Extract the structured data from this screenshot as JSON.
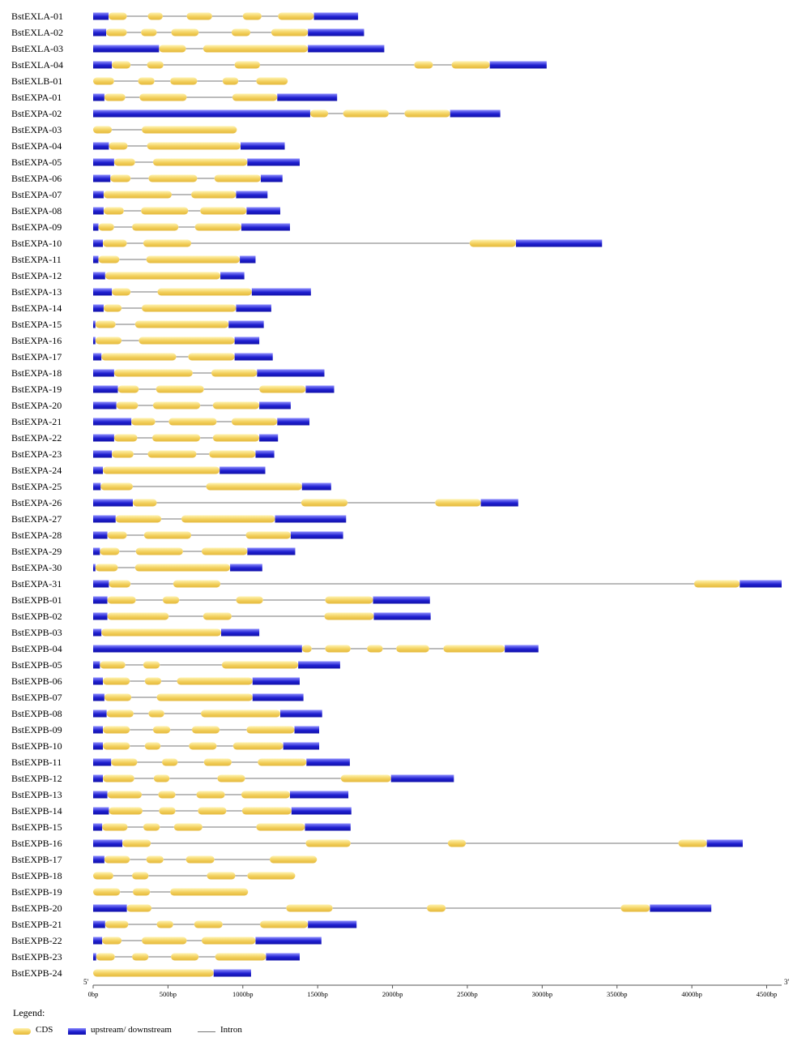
{
  "chart_data": {
    "type": "gene-structure",
    "x_unit": "bp",
    "x_range": [
      0,
      4600
    ],
    "ticks": [
      {
        "value": 0,
        "label": "0bp"
      },
      {
        "value": 500,
        "label": "500bp"
      },
      {
        "value": 1000,
        "label": "1000bp"
      },
      {
        "value": 1500,
        "label": "1500bp"
      },
      {
        "value": 2000,
        "label": "2000bp"
      },
      {
        "value": 2500,
        "label": "2500bp"
      },
      {
        "value": 3000,
        "label": "3000bp"
      },
      {
        "value": 3500,
        "label": "3500bp"
      },
      {
        "value": 4000,
        "label": "4000bp"
      },
      {
        "value": 4500,
        "label": "4500bp"
      }
    ],
    "five_prime_label": "5'",
    "three_prime_label": "3'",
    "genes": [
      {
        "name": "BstEXLA-01",
        "length": 1770,
        "cds": [
          [
            103,
            225
          ],
          [
            365,
            465
          ],
          [
            625,
            795
          ],
          [
            1000,
            1125
          ],
          [
            1235,
            1475
          ]
        ]
      },
      {
        "name": "BstEXLA-02",
        "length": 1810,
        "cds": [
          [
            87,
            225
          ],
          [
            320,
            425
          ],
          [
            522,
            705
          ],
          [
            925,
            1050
          ],
          [
            1190,
            1435
          ]
        ]
      },
      {
        "name": "BstEXLA-03",
        "length": 1945,
        "cds": [
          [
            440,
            620
          ],
          [
            735,
            1435
          ]
        ]
      },
      {
        "name": "BstEXLA-04",
        "length": 3030,
        "cds": [
          [
            125,
            250
          ],
          [
            360,
            470
          ],
          [
            945,
            1115
          ],
          [
            2145,
            2270
          ],
          [
            2395,
            2650
          ]
        ]
      },
      {
        "name": "BstEXLB-01",
        "length": 1300,
        "cds": [
          [
            0,
            140
          ],
          [
            300,
            410
          ],
          [
            515,
            695
          ],
          [
            865,
            970
          ],
          [
            1090,
            1300
          ]
        ]
      },
      {
        "name": "BstEXPA-01",
        "length": 1630,
        "cds": [
          [
            75,
            215
          ],
          [
            310,
            625
          ],
          [
            930,
            1230
          ]
        ]
      },
      {
        "name": "BstEXPA-02",
        "length": 2720,
        "cds": [
          [
            1450,
            1570
          ],
          [
            1670,
            1975
          ],
          [
            2080,
            2385
          ]
        ]
      },
      {
        "name": "BstEXPA-03",
        "length": 960,
        "cds": [
          [
            0,
            125
          ],
          [
            325,
            960
          ]
        ]
      },
      {
        "name": "BstEXPA-04",
        "length": 1280,
        "cds": [
          [
            105,
            230
          ],
          [
            360,
            985
          ]
        ]
      },
      {
        "name": "BstEXPA-05",
        "length": 1380,
        "cds": [
          [
            140,
            280
          ],
          [
            400,
            1030
          ]
        ]
      },
      {
        "name": "BstEXPA-06",
        "length": 1265,
        "cds": [
          [
            115,
            250
          ],
          [
            370,
            695
          ],
          [
            810,
            1120
          ]
        ]
      },
      {
        "name": "BstEXPA-07",
        "length": 1165,
        "cds": [
          [
            70,
            525
          ],
          [
            655,
            955
          ]
        ]
      },
      {
        "name": "BstEXPA-08",
        "length": 1250,
        "cds": [
          [
            70,
            205
          ],
          [
            320,
            635
          ],
          [
            715,
            1025
          ]
        ]
      },
      {
        "name": "BstEXPA-09",
        "length": 1315,
        "cds": [
          [
            35,
            140
          ],
          [
            260,
            570
          ],
          [
            680,
            990
          ]
        ]
      },
      {
        "name": "BstEXPA-10",
        "length": 3400,
        "cds": [
          [
            65,
            225
          ],
          [
            335,
            655
          ],
          [
            2515,
            2825
          ]
        ]
      },
      {
        "name": "BstEXPA-11",
        "length": 1085,
        "cds": [
          [
            35,
            175
          ],
          [
            355,
            980
          ]
        ]
      },
      {
        "name": "BstEXPA-12",
        "length": 1010,
        "cds": [
          [
            80,
            850
          ]
        ]
      },
      {
        "name": "BstEXPA-13",
        "length": 1455,
        "cds": [
          [
            125,
            250
          ],
          [
            430,
            1060
          ]
        ]
      },
      {
        "name": "BstEXPA-14",
        "length": 1190,
        "cds": [
          [
            70,
            190
          ],
          [
            325,
            955
          ]
        ]
      },
      {
        "name": "BstEXPA-15",
        "length": 1140,
        "cds": [
          [
            15,
            150
          ],
          [
            280,
            905
          ]
        ]
      },
      {
        "name": "BstEXPA-16",
        "length": 1110,
        "cds": [
          [
            15,
            190
          ],
          [
            305,
            945
          ]
        ]
      },
      {
        "name": "BstEXPA-17",
        "length": 1200,
        "cds": [
          [
            55,
            555
          ],
          [
            635,
            945
          ]
        ]
      },
      {
        "name": "BstEXPA-18",
        "length": 1545,
        "cds": [
          [
            140,
            665
          ],
          [
            790,
            1095
          ]
        ]
      },
      {
        "name": "BstEXPA-19",
        "length": 1610,
        "cds": [
          [
            165,
            305
          ],
          [
            420,
            740
          ],
          [
            1110,
            1420
          ]
        ]
      },
      {
        "name": "BstEXPA-20",
        "length": 1320,
        "cds": [
          [
            155,
            300
          ],
          [
            400,
            715
          ],
          [
            800,
            1110
          ]
        ]
      },
      {
        "name": "BstEXPA-21",
        "length": 1445,
        "cds": [
          [
            255,
            415
          ],
          [
            505,
            825
          ],
          [
            925,
            1230
          ]
        ]
      },
      {
        "name": "BstEXPA-22",
        "length": 1235,
        "cds": [
          [
            140,
            295
          ],
          [
            395,
            715
          ],
          [
            800,
            1110
          ]
        ]
      },
      {
        "name": "BstEXPA-23",
        "length": 1210,
        "cds": [
          [
            125,
            270
          ],
          [
            365,
            690
          ],
          [
            775,
            1085
          ]
        ]
      },
      {
        "name": "BstEXPA-24",
        "length": 1150,
        "cds": [
          [
            65,
            845
          ]
        ]
      },
      {
        "name": "BstEXPA-25",
        "length": 1590,
        "cds": [
          [
            50,
            265
          ],
          [
            755,
            1395
          ]
        ]
      },
      {
        "name": "BstEXPA-26",
        "length": 2840,
        "cds": [
          [
            265,
            425
          ],
          [
            1390,
            1700
          ],
          [
            2285,
            2590
          ]
        ]
      },
      {
        "name": "BstEXPA-27",
        "length": 1690,
        "cds": [
          [
            150,
            455
          ],
          [
            590,
            1215
          ]
        ]
      },
      {
        "name": "BstEXPA-28",
        "length": 1670,
        "cds": [
          [
            95,
            225
          ],
          [
            340,
            655
          ],
          [
            1020,
            1320
          ]
        ]
      },
      {
        "name": "BstEXPA-29",
        "length": 1350,
        "cds": [
          [
            45,
            175
          ],
          [
            285,
            600
          ],
          [
            725,
            1030
          ]
        ]
      },
      {
        "name": "BstEXPA-30",
        "length": 1130,
        "cds": [
          [
            15,
            165
          ],
          [
            280,
            915
          ]
        ]
      },
      {
        "name": "BstEXPA-31",
        "length": 4600,
        "cds": [
          [
            105,
            250
          ],
          [
            535,
            850
          ],
          [
            4015,
            4320
          ]
        ]
      },
      {
        "name": "BstEXPB-01",
        "length": 2250,
        "cds": [
          [
            95,
            285
          ],
          [
            465,
            575
          ],
          [
            955,
            1135
          ],
          [
            1550,
            1870
          ]
        ]
      },
      {
        "name": "BstEXPB-02",
        "length": 2255,
        "cds": [
          [
            95,
            505
          ],
          [
            735,
            925
          ],
          [
            1545,
            1875
          ]
        ]
      },
      {
        "name": "BstEXPB-03",
        "length": 1110,
        "cds": [
          [
            55,
            855
          ]
        ]
      },
      {
        "name": "BstEXPB-04",
        "length": 2975,
        "cds": [
          [
            1395,
            1460
          ],
          [
            1550,
            1720
          ],
          [
            1830,
            1935
          ],
          [
            2025,
            2245
          ],
          [
            2340,
            2750
          ]
        ]
      },
      {
        "name": "BstEXPB-05",
        "length": 1650,
        "cds": [
          [
            45,
            215
          ],
          [
            335,
            445
          ],
          [
            860,
            1370
          ]
        ]
      },
      {
        "name": "BstEXPB-06",
        "length": 1380,
        "cds": [
          [
            65,
            245
          ],
          [
            345,
            455
          ],
          [
            560,
            1065
          ]
        ]
      },
      {
        "name": "BstEXPB-07",
        "length": 1405,
        "cds": [
          [
            75,
            255
          ],
          [
            425,
            1065
          ]
        ]
      },
      {
        "name": "BstEXPB-08",
        "length": 1530,
        "cds": [
          [
            90,
            270
          ],
          [
            370,
            475
          ],
          [
            720,
            1250
          ]
        ]
      },
      {
        "name": "BstEXPB-09",
        "length": 1510,
        "cds": [
          [
            65,
            245
          ],
          [
            400,
            515
          ],
          [
            660,
            845
          ],
          [
            1025,
            1345
          ]
        ]
      },
      {
        "name": "BstEXPB-10",
        "length": 1510,
        "cds": [
          [
            65,
            245
          ],
          [
            345,
            450
          ],
          [
            640,
            825
          ],
          [
            935,
            1270
          ]
        ]
      },
      {
        "name": "BstEXPB-11",
        "length": 1715,
        "cds": [
          [
            120,
            295
          ],
          [
            460,
            565
          ],
          [
            740,
            925
          ],
          [
            1100,
            1425
          ]
        ]
      },
      {
        "name": "BstEXPB-12",
        "length": 2410,
        "cds": [
          [
            65,
            275
          ],
          [
            405,
            510
          ],
          [
            830,
            1015
          ],
          [
            1655,
            1990
          ]
        ]
      },
      {
        "name": "BstEXPB-13",
        "length": 1705,
        "cds": [
          [
            95,
            325
          ],
          [
            435,
            550
          ],
          [
            690,
            880
          ],
          [
            990,
            1315
          ]
        ]
      },
      {
        "name": "BstEXPB-14",
        "length": 1725,
        "cds": [
          [
            105,
            330
          ],
          [
            440,
            550
          ],
          [
            700,
            890
          ],
          [
            995,
            1325
          ]
        ]
      },
      {
        "name": "BstEXPB-15",
        "length": 1720,
        "cds": [
          [
            60,
            230
          ],
          [
            335,
            445
          ],
          [
            540,
            730
          ],
          [
            1090,
            1415
          ]
        ]
      },
      {
        "name": "BstEXPB-16",
        "length": 4340,
        "cds": [
          [
            195,
            385
          ],
          [
            1420,
            1720
          ],
          [
            2370,
            2490
          ],
          [
            3910,
            4100
          ]
        ]
      },
      {
        "name": "BstEXPB-17",
        "length": 1495,
        "cds": [
          [
            75,
            245
          ],
          [
            355,
            470
          ],
          [
            620,
            810
          ],
          [
            1180,
            1495
          ]
        ]
      },
      {
        "name": "BstEXPB-18",
        "length": 1350,
        "cds": [
          [
            0,
            135
          ],
          [
            260,
            370
          ],
          [
            760,
            950
          ],
          [
            1030,
            1350
          ]
        ]
      },
      {
        "name": "BstEXPB-19",
        "length": 1035,
        "cds": [
          [
            0,
            180
          ],
          [
            265,
            380
          ],
          [
            515,
            1035
          ]
        ]
      },
      {
        "name": "BstEXPB-20",
        "length": 4130,
        "cds": [
          [
            225,
            390
          ],
          [
            1290,
            1600
          ],
          [
            2230,
            2355
          ],
          [
            3525,
            3720
          ]
        ]
      },
      {
        "name": "BstEXPB-21",
        "length": 1760,
        "cds": [
          [
            80,
            235
          ],
          [
            425,
            535
          ],
          [
            675,
            865
          ],
          [
            1115,
            1435
          ]
        ]
      },
      {
        "name": "BstEXPB-22",
        "length": 1525,
        "cds": [
          [
            60,
            190
          ],
          [
            325,
            625
          ],
          [
            725,
            1085
          ]
        ]
      },
      {
        "name": "BstEXPB-23",
        "length": 1380,
        "cds": [
          [
            20,
            145
          ],
          [
            260,
            370
          ],
          [
            520,
            705
          ],
          [
            815,
            1155
          ]
        ]
      },
      {
        "name": "BstEXPB-24",
        "length": 1055,
        "cds": [
          [
            0,
            805
          ]
        ]
      }
    ]
  },
  "legend": {
    "title": "Legend:",
    "cds": "CDS",
    "utr": "upstream/ downstream",
    "intron": "Intron"
  },
  "colors": {
    "cds_light": "#fff3b0",
    "cds_mid": "#f2cf5b",
    "cds_dark": "#e4b93c",
    "utr_light": "#8c8cff",
    "utr_mid": "#1f1fd0",
    "utr_dark": "#1010a8",
    "intron": "#777777"
  }
}
